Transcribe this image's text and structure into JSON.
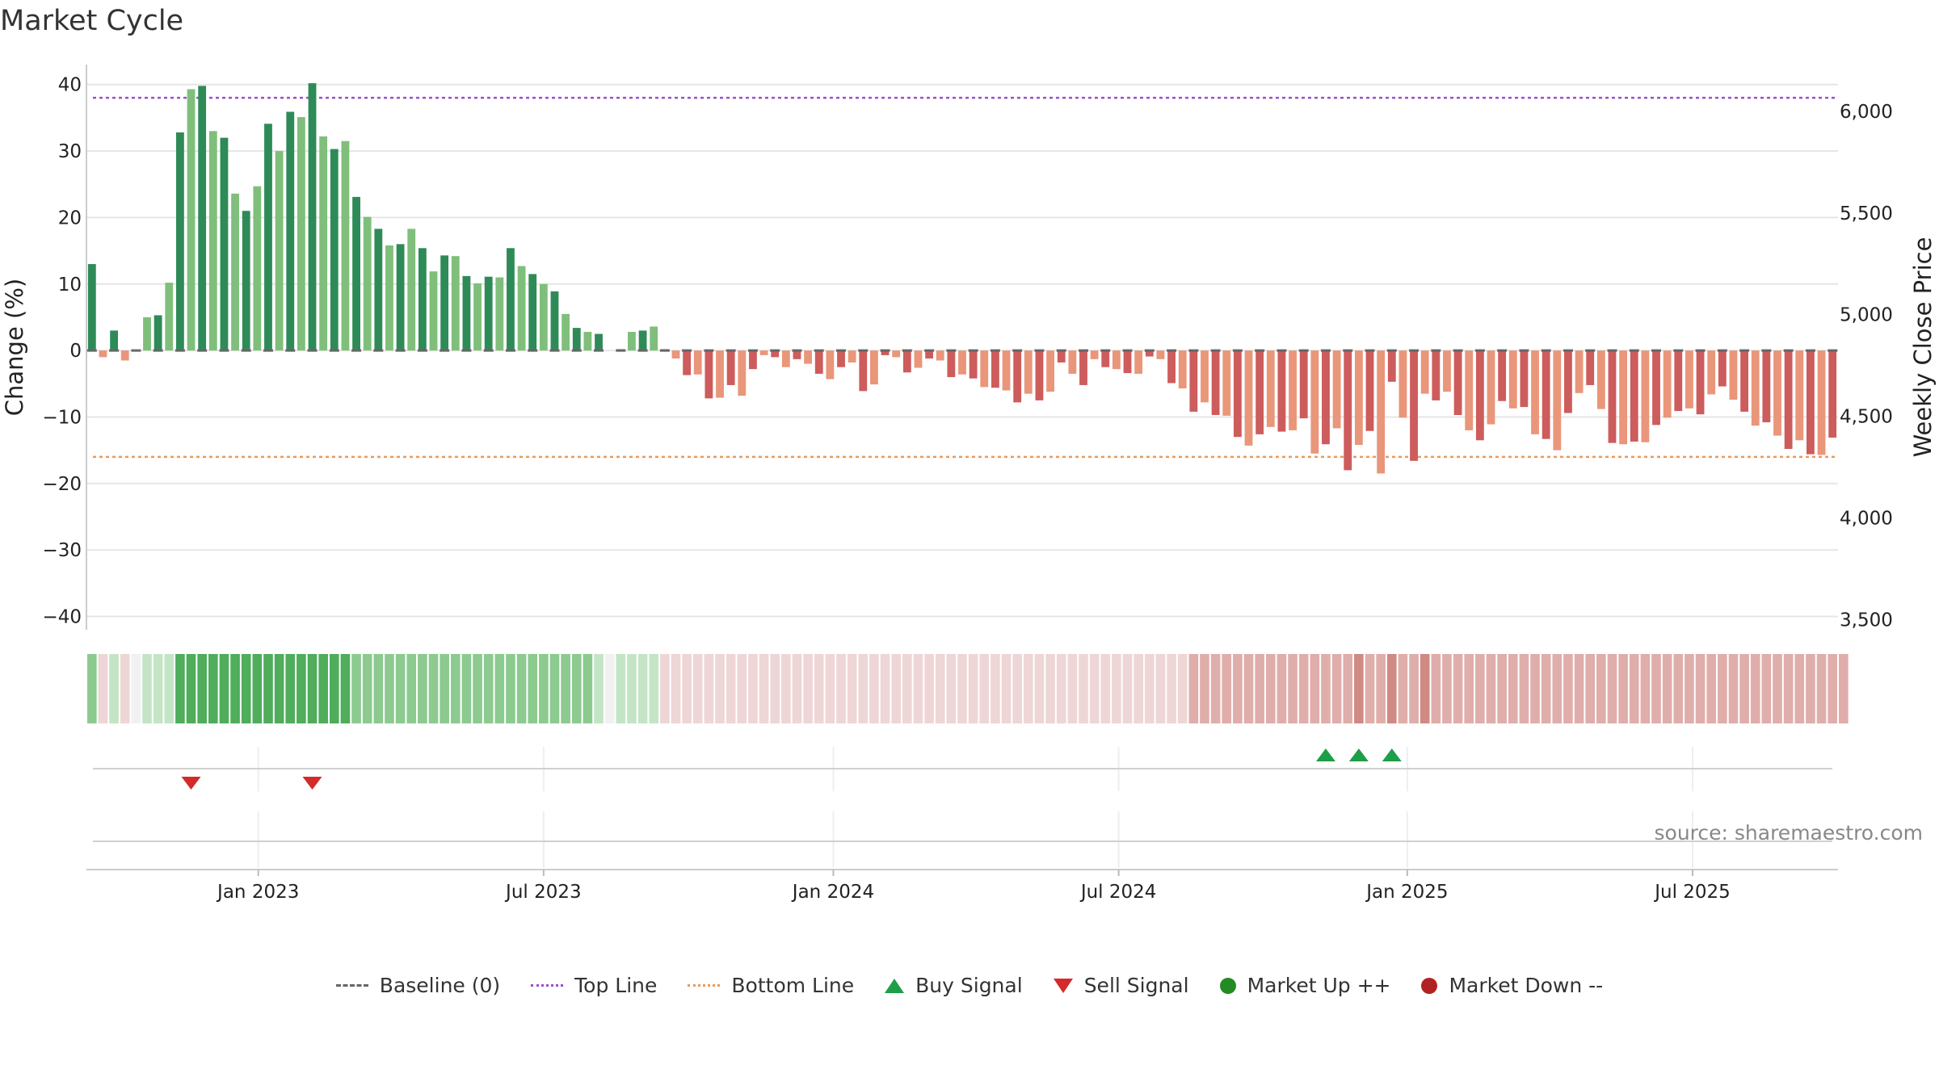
{
  "title": "Market Cycle",
  "source": "source: sharemaestro.com",
  "colors": {
    "pos_strong": "#2e8b57",
    "pos_light": "#7fbf7b",
    "neg_strong": "#cd5c5c",
    "neg_light": "#e9967a",
    "top_line": "#9b4fd0",
    "bottom_line": "#e89a5c",
    "baseline": "#666666",
    "buy": "#1e9e48",
    "sell": "#d42a2a",
    "market_up": "#228b22",
    "market_down": "#b22222"
  },
  "legend": [
    {
      "label": "Baseline (0)",
      "icon": "dash-line-icon"
    },
    {
      "label": "Top Line",
      "icon": "purple-dotted-line-icon"
    },
    {
      "label": "Bottom Line",
      "icon": "orange-dotted-line-icon"
    },
    {
      "label": "Buy Signal",
      "icon": "triangle-up-icon"
    },
    {
      "label": "Sell Signal",
      "icon": "triangle-down-icon"
    },
    {
      "label": "Market Up ++",
      "icon": "green-circle-icon"
    },
    {
      "label": "Market Down --",
      "icon": "red-circle-icon"
    }
  ],
  "chart_data": {
    "type": "bar",
    "ylabel": "Change (%)",
    "y2label": "Weekly Close Price",
    "ylim": [
      -42,
      43
    ],
    "y2lim": [
      3450,
      6230
    ],
    "yticks": [
      "40",
      "30",
      "20",
      "10",
      "0",
      "−10",
      "−20",
      "−30",
      "−40"
    ],
    "y2ticks": [
      "6,000",
      "5,500",
      "5,000",
      "4,500",
      "4,000",
      "3,500"
    ],
    "xticks": [
      "Jan 2023",
      "Jul 2023",
      "Jan 2024",
      "Jul 2024",
      "Jan 2025",
      "Jul 2025"
    ],
    "xtick_positions": [
      15.6,
      41.5,
      67.8,
      93.7,
      119.9,
      145.8
    ],
    "top_line": 38,
    "bottom_line": -16,
    "baseline": 0,
    "values": [
      13,
      -1,
      3,
      -1.5,
      0,
      5,
      5.3,
      10.2,
      32.8,
      39.3,
      39.8,
      33,
      32,
      23.6,
      21,
      24.7,
      34.1,
      30,
      35.9,
      35.1,
      40.2,
      32.2,
      30.3,
      31.5,
      23.1,
      20.1,
      18.3,
      15.8,
      16,
      18.3,
      15.4,
      11.9,
      14.3,
      14.2,
      11.2,
      10.1,
      11.1,
      11,
      15.4,
      12.7,
      11.5,
      10,
      8.9,
      5.5,
      3.4,
      2.8,
      2.5,
      0,
      0.2,
      2.8,
      3,
      3.6,
      0.2,
      -1.2,
      -3.7,
      -3.6,
      -7.2,
      -7.1,
      -5.2,
      -6.8,
      -2.8,
      -0.7,
      -1,
      -2.5,
      -1.3,
      -2,
      -3.5,
      -4.3,
      -2.5,
      -1.8,
      -6.1,
      -5.1,
      -0.7,
      -1,
      -3.3,
      -2.6,
      -1.2,
      -1.5,
      -4,
      -3.6,
      -4.2,
      -5.5,
      -5.6,
      -6,
      -7.8,
      -6.5,
      -7.5,
      -6.2,
      -1.8,
      -3.5,
      -5.2,
      -1.3,
      -2.5,
      -2.8,
      -3.4,
      -3.5,
      -0.9,
      -1.3,
      -4.9,
      -5.7,
      -9.2,
      -7.8,
      -9.7,
      -9.8,
      -13,
      -14.3,
      -12.6,
      -11.5,
      -12.2,
      -12,
      -10.2,
      -15.5,
      -14.1,
      -11.7,
      -18,
      -14.2,
      -12.1,
      -18.5,
      -4.7,
      -10.1,
      -16.6,
      -6.5,
      -7.5,
      -6.2,
      -9.7,
      -12,
      -13.5,
      -11.1,
      -7.6,
      -8.7,
      -8.5,
      -12.6,
      -13.3,
      -15,
      -9.4,
      -6.4,
      -5.2,
      -8.8,
      -13.9,
      -14.1,
      -13.7,
      -13.8,
      -11.2,
      -10.1,
      -9.1,
      -8.7,
      -9.6,
      -6.6,
      -5.4,
      -7.4,
      -9.2,
      -11.3,
      -10.8,
      -12.8,
      -14.8,
      -13.5,
      -15.6,
      -15.7,
      -13.1
    ],
    "strength_band": [
      2,
      -1,
      1,
      -1,
      0,
      1,
      1,
      1,
      3,
      3,
      3,
      3,
      3,
      3,
      3,
      3,
      3,
      3,
      3,
      3,
      3,
      3,
      3,
      3,
      2,
      2,
      2,
      2,
      2,
      2,
      2,
      2,
      2,
      2,
      2,
      2,
      2,
      2,
      2,
      2,
      2,
      2,
      2,
      2,
      2,
      2,
      1,
      0,
      1,
      1,
      1,
      1,
      -1,
      -1,
      -1,
      -1,
      -1,
      -1,
      -1,
      -1,
      -1,
      -1,
      -1,
      -1,
      -1,
      -1,
      -1,
      -1,
      -1,
      -1,
      -1,
      -1,
      -1,
      -1,
      -1,
      -1,
      -1,
      -1,
      -1,
      -1,
      -1,
      -1,
      -1,
      -1,
      -1,
      -1,
      -1,
      -1,
      -1,
      -1,
      -1,
      -1,
      -1,
      -1,
      -1,
      -1,
      -1,
      -1,
      -1,
      -1,
      -2,
      -2,
      -2,
      -2,
      -2,
      -2,
      -2,
      -2,
      -2,
      -2,
      -2,
      -2,
      -2,
      -2,
      -2,
      -3,
      -2,
      -2,
      -3,
      -2,
      -2,
      -3,
      -2,
      -2,
      -2,
      -2,
      -2,
      -2,
      -2,
      -2,
      -2,
      -2,
      -2,
      -2,
      -2,
      -2,
      -2,
      -2,
      -2,
      -2,
      -2,
      -2,
      -2,
      -2,
      -2,
      -2,
      -2,
      -2,
      -2,
      -2,
      -2,
      -2,
      -2,
      -2,
      -2,
      -2,
      -2,
      -2,
      -2,
      -2
    ],
    "buy_signals": [
      112,
      115,
      118
    ],
    "sell_signals": [
      9,
      20
    ]
  }
}
